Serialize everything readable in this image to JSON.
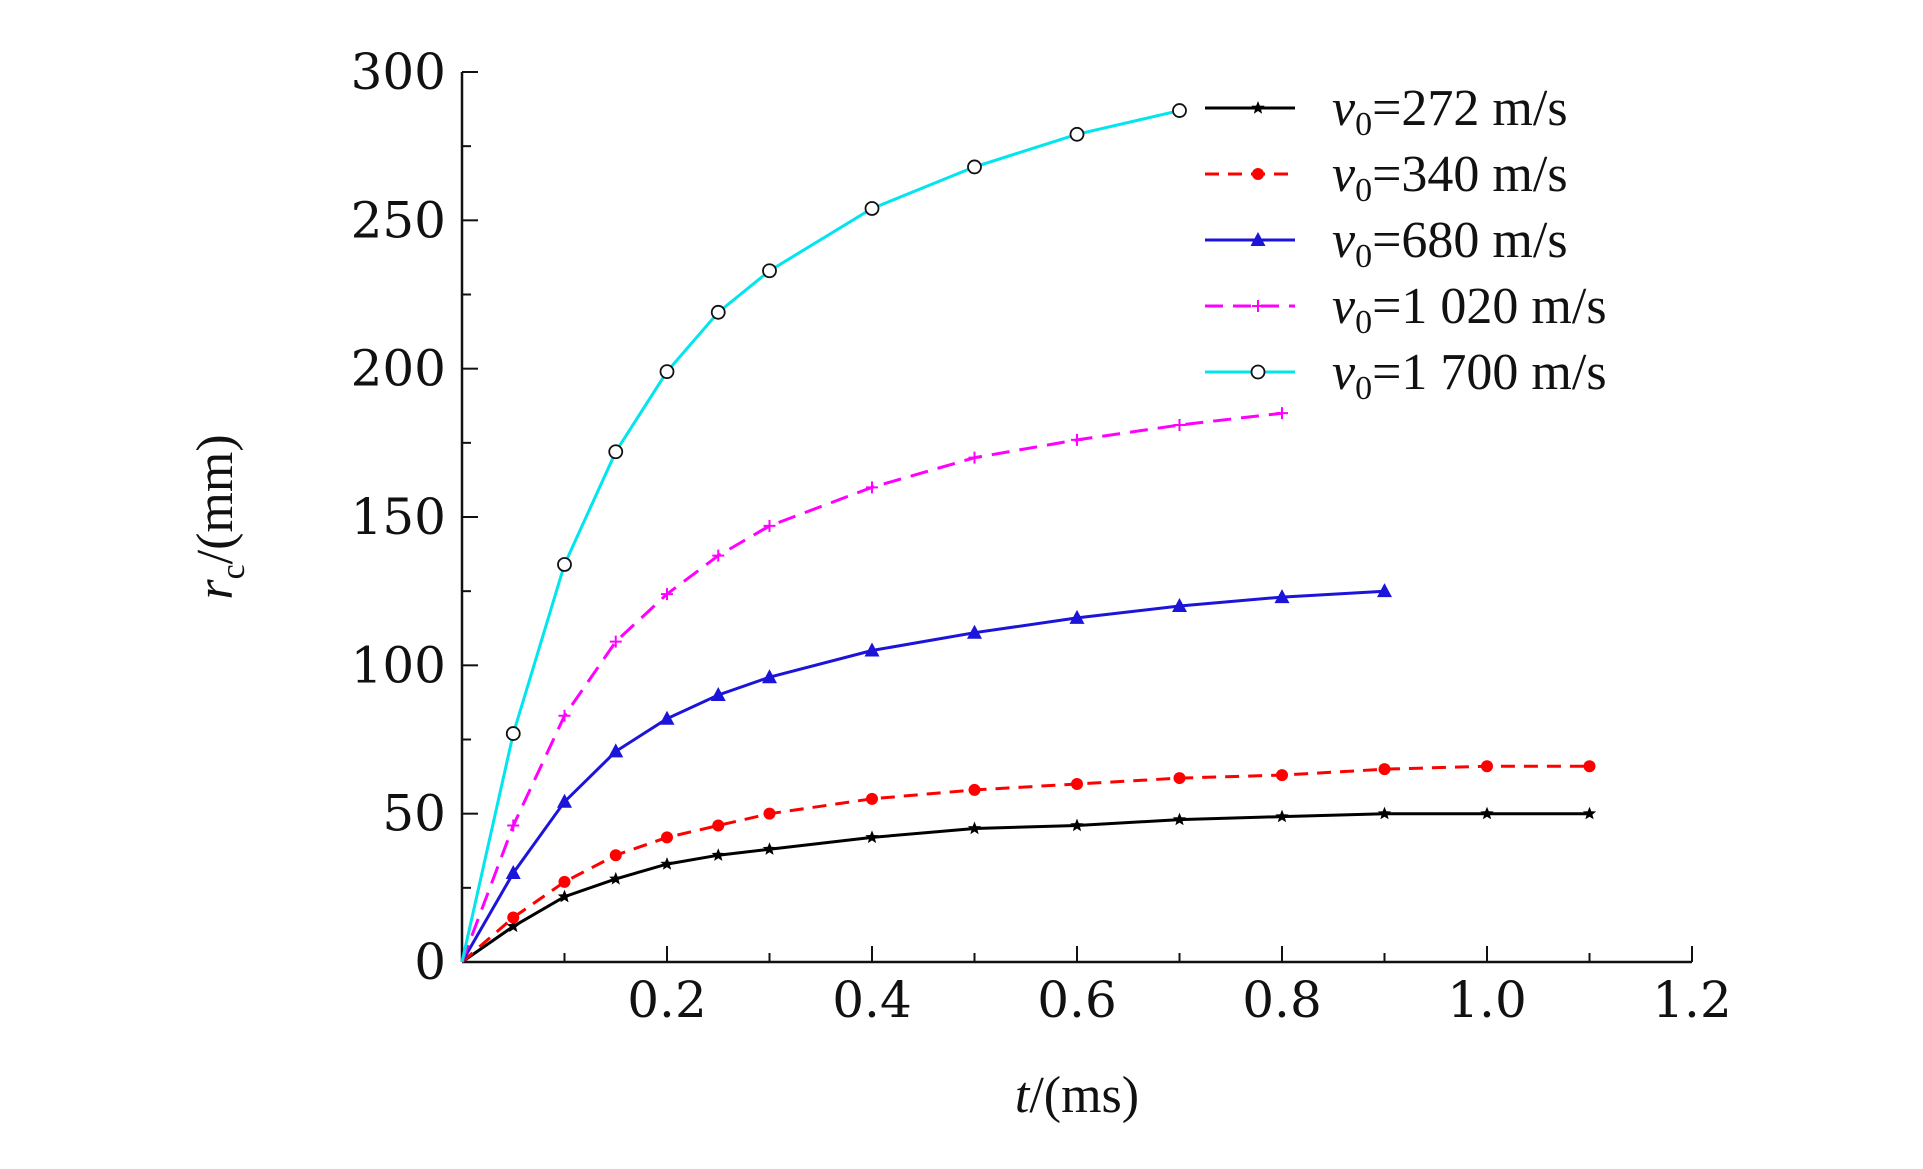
{
  "chart_data": {
    "type": "line",
    "title": "",
    "xlabel": {
      "var": "t",
      "unit": "/(ms)"
    },
    "ylabel": {
      "var": "r",
      "sub": "c",
      "unit": "/(mm)"
    },
    "xlim": [
      0,
      1.2
    ],
    "ylim": [
      0,
      300
    ],
    "xticks": [
      {
        "value": 0.2,
        "label": "0.2"
      },
      {
        "value": 0.4,
        "label": "0.4"
      },
      {
        "value": 0.6,
        "label": "0.6"
      },
      {
        "value": 0.8,
        "label": "0.8"
      },
      {
        "value": 1.0,
        "label": "1.0"
      },
      {
        "value": 1.2,
        "label": "1.2"
      }
    ],
    "yticks": [
      {
        "value": 0,
        "label": "0"
      },
      {
        "value": 50,
        "label": "50"
      },
      {
        "value": 100,
        "label": "100"
      },
      {
        "value": 150,
        "label": "150"
      },
      {
        "value": 200,
        "label": "200"
      },
      {
        "value": 250,
        "label": "250"
      },
      {
        "value": 300,
        "label": "300"
      }
    ],
    "grid": false,
    "legend_position": "top-right",
    "series": [
      {
        "legend_var": "v",
        "legend_sub": "0",
        "legend_value": "=272 m/s",
        "color": "#000000",
        "dash": "",
        "marker": "star",
        "x": [
          0,
          0.05,
          0.1,
          0.15,
          0.2,
          0.25,
          0.3,
          0.4,
          0.5,
          0.6,
          0.7,
          0.8,
          0.9,
          1.0,
          1.1
        ],
        "y": [
          0,
          12,
          22,
          28,
          33,
          36,
          38,
          42,
          45,
          46,
          48,
          49,
          50,
          50,
          50
        ]
      },
      {
        "legend_var": "v",
        "legend_sub": "0",
        "legend_value": "=340 m/s",
        "color": "#ff0000",
        "dash": "14 9",
        "marker": "dot",
        "x": [
          0,
          0.05,
          0.1,
          0.15,
          0.2,
          0.25,
          0.3,
          0.4,
          0.5,
          0.6,
          0.7,
          0.8,
          0.9,
          1.0,
          1.1
        ],
        "y": [
          0,
          15,
          27,
          36,
          42,
          46,
          50,
          55,
          58,
          60,
          62,
          63,
          65,
          66,
          66
        ]
      },
      {
        "legend_var": "v",
        "legend_sub": "0",
        "legend_value": "=680 m/s",
        "color": "#1c14d8",
        "dash": "",
        "marker": "triangle",
        "x": [
          0,
          0.05,
          0.1,
          0.15,
          0.2,
          0.25,
          0.3,
          0.4,
          0.5,
          0.6,
          0.7,
          0.8,
          0.9
        ],
        "y": [
          0,
          30,
          54,
          71,
          82,
          90,
          96,
          105,
          111,
          116,
          120,
          123,
          125
        ]
      },
      {
        "legend_var": "v",
        "legend_sub": "0",
        "legend_value": "=1 020 m/s",
        "color": "#ff00ff",
        "dash": "18 10",
        "marker": "plus",
        "x": [
          0,
          0.05,
          0.1,
          0.15,
          0.2,
          0.25,
          0.3,
          0.4,
          0.5,
          0.6,
          0.7,
          0.8
        ],
        "y": [
          0,
          46,
          83,
          108,
          124,
          137,
          147,
          160,
          170,
          176,
          181,
          185
        ]
      },
      {
        "legend_var": "v",
        "legend_sub": "0",
        "legend_value": "=1 700 m/s",
        "color": "#00e5ee",
        "dash": "",
        "marker": "circle",
        "x": [
          0,
          0.05,
          0.1,
          0.15,
          0.2,
          0.25,
          0.3,
          0.4,
          0.5,
          0.6,
          0.7
        ],
        "y": [
          0,
          77,
          134,
          172,
          199,
          219,
          233,
          254,
          268,
          279,
          287
        ]
      }
    ]
  }
}
